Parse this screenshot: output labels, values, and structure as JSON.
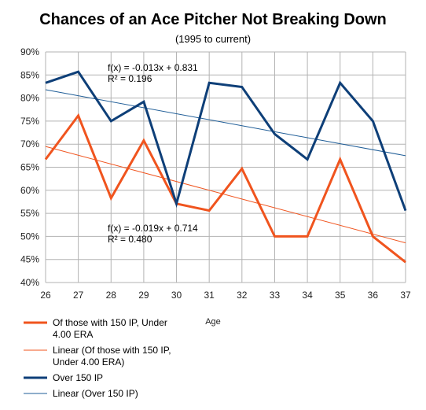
{
  "chart_data": {
    "type": "line",
    "title": "Chances of an Ace Pitcher Not Breaking Down",
    "subtitle": "(1995 to current)",
    "xlabel": "Age",
    "ylabel": "",
    "x": [
      26,
      27,
      28,
      29,
      30,
      31,
      32,
      33,
      34,
      35,
      36,
      37
    ],
    "x_tick_labels": [
      "26",
      "27",
      "28",
      "29",
      "30",
      "31",
      "32",
      "33",
      "34",
      "35",
      "36",
      "37"
    ],
    "ylim": [
      0.4,
      0.9
    ],
    "y_ticks": [
      0.4,
      0.45,
      0.5,
      0.55,
      0.6,
      0.65,
      0.7,
      0.75,
      0.8,
      0.85,
      0.9
    ],
    "y_tick_labels": [
      "40%",
      "45%",
      "50%",
      "55%",
      "60%",
      "65%",
      "70%",
      "75%",
      "80%",
      "85%",
      "90%"
    ],
    "grid": true,
    "legend_position": "bottom-left",
    "series": [
      {
        "name": "Of those with 150 IP, Under 4.00 ERA",
        "legend_lines": [
          "Of those with 150 IP, Under",
          "4.00 ERA"
        ],
        "color": "#f0541e",
        "width": 3,
        "values": [
          0.667,
          0.762,
          0.583,
          0.708,
          0.571,
          0.556,
          0.647,
          0.5,
          0.5,
          0.667,
          0.5,
          0.444
        ]
      },
      {
        "name": "Linear (Of those with 150 IP, Under 4.00 ERA)",
        "legend_lines": [
          "Linear (Of those with 150 IP,",
          "Under 4.00 ERA)"
        ],
        "color": "#f0541e",
        "width": 1,
        "trend": {
          "slope": -0.019,
          "intercept": 0.714
        }
      },
      {
        "name": "Over 150 IP",
        "legend_lines": [
          "Over 150 IP"
        ],
        "color": "#0e3f78",
        "width": 3,
        "values": [
          0.833,
          0.857,
          0.75,
          0.792,
          0.571,
          0.833,
          0.824,
          0.722,
          0.667,
          0.833,
          0.75,
          0.556
        ]
      },
      {
        "name": "Linear (Over 150 IP)",
        "legend_lines": [
          "Linear (Over 150 IP)"
        ],
        "color": "#1f5d97",
        "width": 1,
        "trend": {
          "slope": -0.013,
          "intercept": 0.831
        }
      }
    ],
    "annotations": [
      {
        "lines": [
          "f(x) = -0.013x + 0.831",
          "R² = 0.196"
        ],
        "series_index": 3
      },
      {
        "lines": [
          "f(x) = -0.019x + 0.714",
          "R² = 0.480"
        ],
        "series_index": 1
      }
    ]
  }
}
